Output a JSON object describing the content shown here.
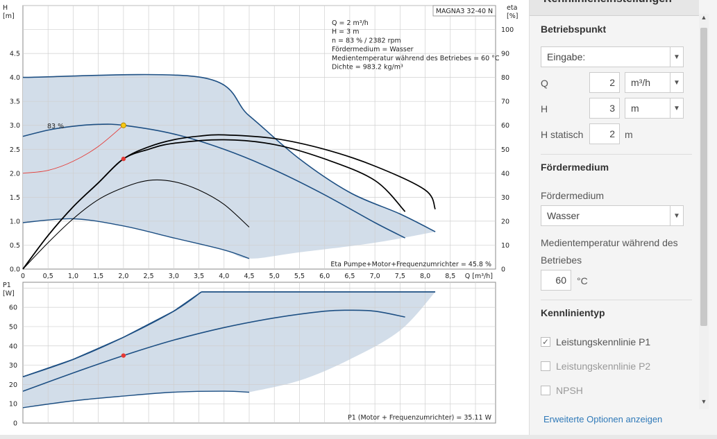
{
  "chart_data": [
    {
      "type": "line",
      "title": "MAGNA3 32-40 N",
      "ylabel": "H\n[m]",
      "y2label": "eta\n[%]",
      "xlabel": "Q [m³/h]",
      "xlim": [
        0,
        9.4
      ],
      "ylim": [
        0,
        5.5
      ],
      "y2lim": [
        0,
        110
      ],
      "xticks": [
        "0",
        "0,5",
        "1,0",
        "1,5",
        "2,0",
        "2,5",
        "3,0",
        "3,5",
        "4,0",
        "4,5",
        "5,0",
        "5,5",
        "6,0",
        "6,5",
        "7,0",
        "7,5",
        "8,0",
        "8,5"
      ],
      "yticks": [
        "0.0",
        "0.5",
        "1.0",
        "1.5",
        "2.0",
        "2.5",
        "3.0",
        "3.5",
        "4.0",
        "4.5"
      ],
      "y2ticks": [
        "0",
        "10",
        "20",
        "30",
        "40",
        "50",
        "60",
        "70",
        "80",
        "90",
        "100"
      ],
      "info_lines": [
        "Q = 2 m³/h",
        "H = 3 m",
        "n = 83 % / 2382 rpm",
        "Fördermedium = Wasser",
        "Medientemperatur während des Betriebes = 60 °C",
        "Dichte = 983.2 kg/m³"
      ],
      "bottom_note": "Eta Pumpe+Motor+Frequenzumrichter = 45.8 %",
      "curve_label": "83 %",
      "operating_point": {
        "x": 2.0,
        "y": 3.0
      },
      "series": [
        {
          "role": "envelope-max",
          "points": [
            [
              0,
              4.0
            ],
            [
              3.55,
              4.0
            ],
            [
              4.5,
              3.2
            ],
            [
              5.5,
              2.3
            ],
            [
              6.5,
              1.6
            ],
            [
              7.5,
              1.15
            ],
            [
              8.2,
              0.78
            ]
          ]
        },
        {
          "role": "envelope-min",
          "points": [
            [
              0,
              0.97
            ],
            [
              1.0,
              1.05
            ],
            [
              2.0,
              0.9
            ],
            [
              3.0,
              0.65
            ],
            [
              4.0,
              0.4
            ],
            [
              4.5,
              0.22
            ],
            [
              5.5,
              0.35
            ],
            [
              7.0,
              0.55
            ],
            [
              8.2,
              0.78
            ]
          ]
        },
        {
          "role": "head-curve-83",
          "points": [
            [
              0,
              2.77
            ],
            [
              0.5,
              2.9
            ],
            [
              1.0,
              2.98
            ],
            [
              1.5,
              3.02
            ],
            [
              2.0,
              3.0
            ],
            [
              3.0,
              2.82
            ],
            [
              4.0,
              2.5
            ],
            [
              5.0,
              2.07
            ],
            [
              6.0,
              1.55
            ],
            [
              7.0,
              0.97
            ],
            [
              7.6,
              0.65
            ]
          ]
        },
        {
          "role": "system-curve",
          "points": [
            [
              0,
              2.0
            ],
            [
              0.5,
              2.06
            ],
            [
              1.0,
              2.25
            ],
            [
              1.5,
              2.56
            ],
            [
              2.0,
              3.0
            ]
          ]
        },
        {
          "role": "eta-max",
          "points": [
            [
              0,
              0
            ],
            [
              0.5,
              14
            ],
            [
              1.0,
              26
            ],
            [
              1.5,
              36
            ],
            [
              2.0,
              46
            ],
            [
              2.5,
              51
            ],
            [
              3.0,
              54
            ],
            [
              3.5,
              55.5
            ],
            [
              4.0,
              56
            ],
            [
              5.0,
              54.5
            ],
            [
              6.0,
              50
            ],
            [
              7.0,
              43
            ],
            [
              8.0,
              33
            ],
            [
              8.2,
              25
            ]
          ]
        },
        {
          "role": "eta-83",
          "points": [
            [
              0,
              0
            ],
            [
              0.5,
              14
            ],
            [
              1.0,
              26
            ],
            [
              1.5,
              36
            ],
            [
              2.0,
              46
            ],
            [
              2.5,
              50
            ],
            [
              3.0,
              52.5
            ],
            [
              4.0,
              54
            ],
            [
              5.0,
              52
            ],
            [
              6.0,
              46
            ],
            [
              7.0,
              37
            ],
            [
              7.6,
              24
            ]
          ]
        },
        {
          "role": "eta-min",
          "points": [
            [
              0,
              0
            ],
            [
              0.5,
              11
            ],
            [
              1.0,
              21
            ],
            [
              1.5,
              29
            ],
            [
              2.0,
              34
            ],
            [
              2.5,
              37
            ],
            [
              3.0,
              36.5
            ],
            [
              3.5,
              33
            ],
            [
              4.0,
              27
            ],
            [
              4.5,
              17.5
            ]
          ]
        }
      ],
      "eta_point": {
        "x": 2.0,
        "y": 46
      }
    },
    {
      "type": "line",
      "ylabel": "P1\n[W]",
      "xlim": [
        0,
        9.4
      ],
      "ylim": [
        0,
        73
      ],
      "yticks": [
        "0",
        "10",
        "20",
        "30",
        "40",
        "50",
        "60"
      ],
      "bottom_note": "P1 (Motor + Frequenzumrichter) = 35.11 W",
      "operating_point": {
        "x": 2.0,
        "y": 35
      },
      "series": [
        {
          "role": "power-max",
          "points": [
            [
              0,
              24
            ],
            [
              1.0,
              33
            ],
            [
              2.0,
              44.5
            ],
            [
              3.0,
              58
            ],
            [
              3.55,
              68
            ],
            [
              8.2,
              68
            ]
          ]
        },
        {
          "role": "power-min",
          "points": [
            [
              0,
              8
            ],
            [
              1.0,
              11.5
            ],
            [
              2.0,
              14
            ],
            [
              3.0,
              16
            ],
            [
              4.0,
              16.5
            ],
            [
              4.5,
              16
            ]
          ]
        },
        {
          "role": "power-83",
          "points": [
            [
              0,
              16.5
            ],
            [
              1.0,
              26
            ],
            [
              2.0,
              35
            ],
            [
              3.0,
              43
            ],
            [
              4.0,
              49.5
            ],
            [
              5.0,
              54.5
            ],
            [
              6.0,
              58
            ],
            [
              6.5,
              58.5
            ],
            [
              7.0,
              58
            ],
            [
              7.6,
              55
            ]
          ]
        },
        {
          "role": "envelope-lower",
          "points": [
            [
              4.5,
              16
            ],
            [
              5.5,
              22
            ],
            [
              6.5,
              33
            ],
            [
              7.5,
              48
            ],
            [
              8.2,
              68
            ]
          ]
        }
      ]
    }
  ],
  "colors": {
    "envelope_fill": "#d2dde9",
    "envelope_line": "#1d4f83",
    "grid": "#cfcfcf",
    "eta_line": "#000000",
    "system_line": "#e53935",
    "op_point_head": "#f7c815",
    "op_point_eta": "#e53935",
    "link": "#2f79b8"
  },
  "panel": {
    "header_title": "Kennlinieneinstellungen",
    "sec_operating": "Betriebspunkt",
    "input_mode": "Eingabe:",
    "q_label": "Q",
    "q_value": "2",
    "q_unit": "m³/h",
    "h_label": "H",
    "h_value": "3",
    "h_unit": "m",
    "hstat_label": "H statisch",
    "hstat_value": "2",
    "hstat_unit": "m",
    "sec_medium": "Fördermedium",
    "medium_label": "Fördermedium",
    "medium_value": "Wasser",
    "temp_label_1": "Medientemperatur während des",
    "temp_label_2": "Betriebes",
    "temp_value": "60",
    "temp_unit": "°C",
    "sec_curvetype": "Kennlinientyp",
    "cb_p1": "Leistungskennlinie P1",
    "cb_p2": "Leistungskennlinie P2",
    "cb_npsh": "NPSH",
    "advanced_link": "Erweiterte Optionen anzeigen"
  }
}
